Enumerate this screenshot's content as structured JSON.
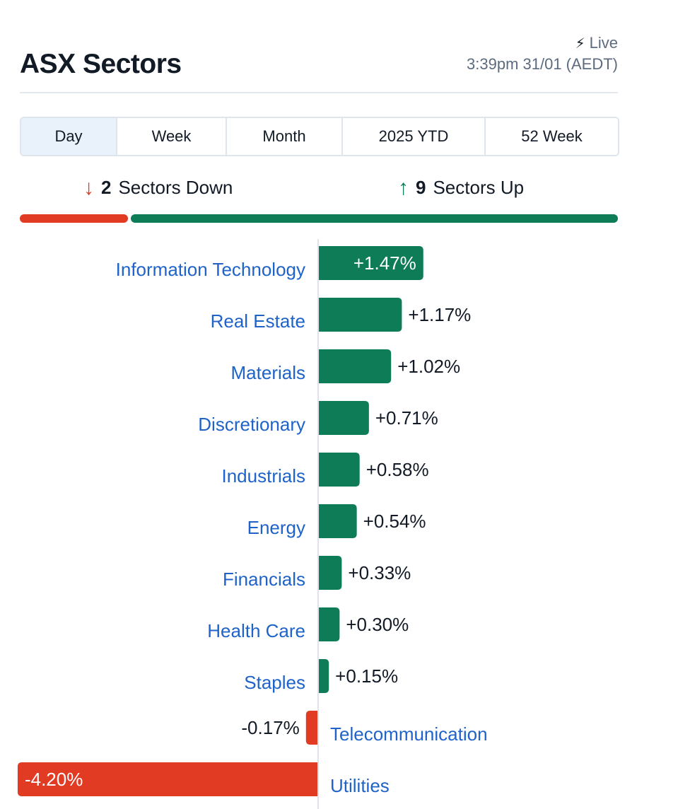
{
  "header": {
    "title": "ASX Sectors",
    "live_label": "Live",
    "timestamp": "3:39pm 31/01 (AEDT)"
  },
  "tabs": [
    {
      "label": "Day",
      "active": true
    },
    {
      "label": "Week",
      "active": false
    },
    {
      "label": "Month",
      "active": false
    },
    {
      "label": "2025 YTD",
      "active": false
    },
    {
      "label": "52 Week",
      "active": false
    }
  ],
  "summary": {
    "down_count": "2",
    "down_label": "Sectors Down",
    "up_count": "9",
    "up_label": "Sectors Up",
    "down_color": "#e23b24",
    "up_color": "#0d7c57"
  },
  "icons": {
    "live": "lightning-bolt-icon",
    "down": "arrow-down-icon",
    "up": "arrow-up-icon"
  },
  "chart_data": {
    "type": "bar",
    "orientation": "horizontal",
    "categories": [
      "Information Technology",
      "Real Estate",
      "Materials",
      "Discretionary",
      "Industrials",
      "Energy",
      "Financials",
      "Health Care",
      "Staples",
      "Telecommunication",
      "Utilities"
    ],
    "values": [
      1.47,
      1.17,
      1.02,
      0.71,
      0.58,
      0.54,
      0.33,
      0.3,
      0.15,
      -0.17,
      -4.2
    ],
    "value_labels": [
      "+1.47%",
      "+1.17%",
      "+1.02%",
      "+0.71%",
      "+0.58%",
      "+0.54%",
      "+0.33%",
      "+0.30%",
      "+0.15%",
      "-0.17%",
      "-4.20%"
    ],
    "positive_color": "#0d7c57",
    "negative_color": "#e23b24",
    "label_color": "#1f63c9"
  }
}
